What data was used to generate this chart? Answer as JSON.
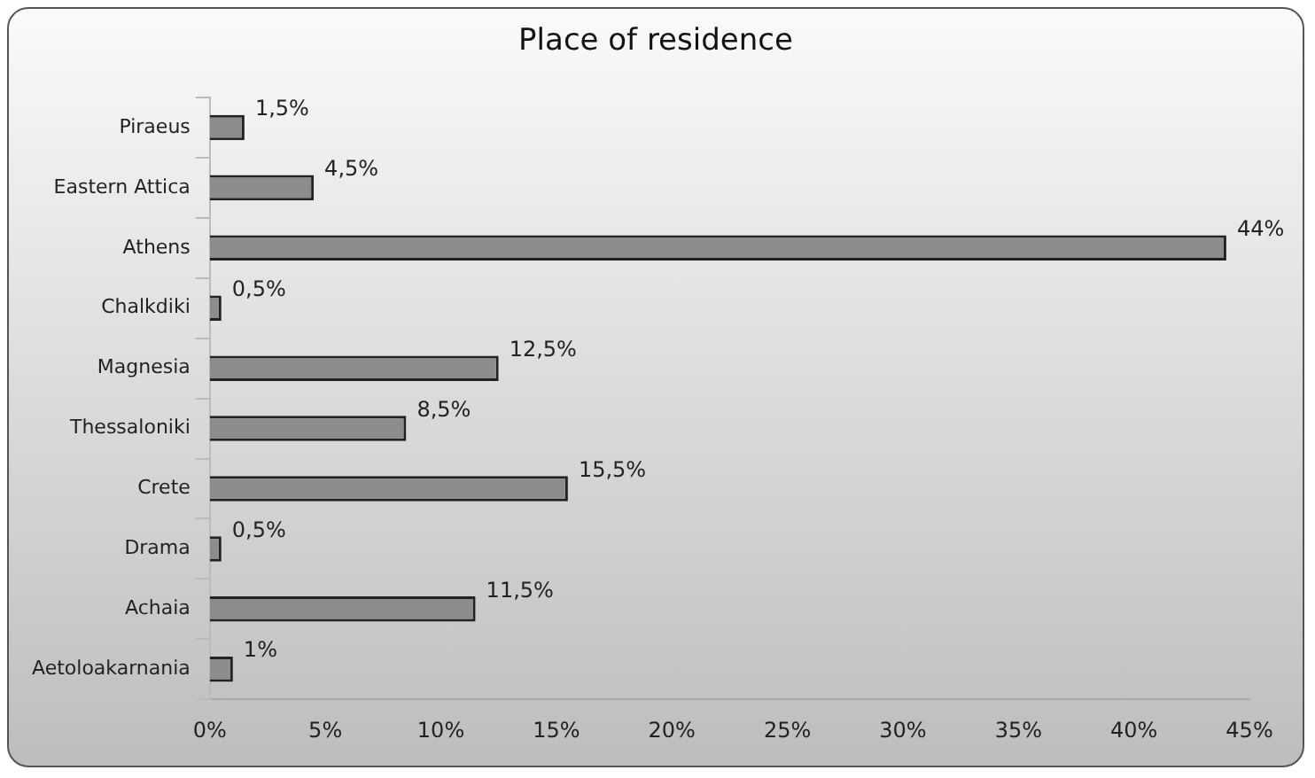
{
  "chart_data": {
    "type": "bar",
    "orientation": "horizontal",
    "title": "Place of residence",
    "categories": [
      "Piraeus",
      "Eastern Attica",
      "Athens",
      "Chalkdiki",
      "Magnesia",
      "Thessaloniki",
      "Crete",
      "Drama",
      "Achaia",
      "Aetoloakarnania"
    ],
    "values": [
      1.5,
      4.5,
      44,
      0.5,
      12.5,
      8.5,
      15.5,
      0.5,
      11.5,
      1
    ],
    "value_labels": [
      "1,5%",
      "4,5%",
      "44%",
      "0,5%",
      "12,5%",
      "8,5%",
      "15,5%",
      "0,5%",
      "11,5%",
      "1%"
    ],
    "color": "#8c8c8c",
    "xlim": [
      0,
      45
    ],
    "xticks": [
      {
        "value": 0,
        "label": "0%"
      },
      {
        "value": 5,
        "label": "5%"
      },
      {
        "value": 10,
        "label": "10%"
      },
      {
        "value": 15,
        "label": "15%"
      },
      {
        "value": 20,
        "label": "20%"
      },
      {
        "value": 25,
        "label": "25%"
      },
      {
        "value": 30,
        "label": "30%"
      },
      {
        "value": 35,
        "label": "35%"
      },
      {
        "value": 40,
        "label": "40%"
      },
      {
        "value": 45,
        "label": "45%"
      }
    ],
    "grid": false,
    "legend": false
  }
}
